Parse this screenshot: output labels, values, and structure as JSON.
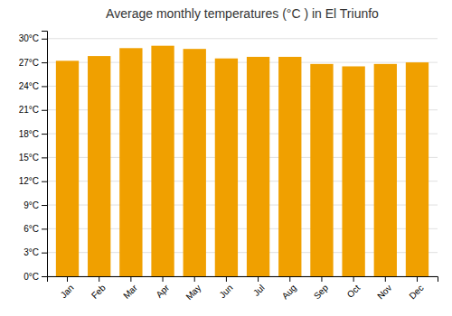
{
  "chart_data": {
    "type": "bar",
    "title": "Average monthly temperatures (°C ) in El Triunfo",
    "categories": [
      "Jan",
      "Feb",
      "Mar",
      "Apr",
      "May",
      "Jun",
      "Jul",
      "Aug",
      "Sep",
      "Oct",
      "Nov",
      "Dec"
    ],
    "values": [
      27.2,
      27.8,
      28.8,
      29.1,
      28.7,
      27.5,
      27.7,
      27.7,
      26.8,
      26.5,
      26.8,
      27.0
    ],
    "color": "#F0A000",
    "ylim": [
      0,
      31
    ],
    "yticks": [
      {
        "value": 0,
        "label": "0°C"
      },
      {
        "value": 3,
        "label": "3°C"
      },
      {
        "value": 6,
        "label": "6°C"
      },
      {
        "value": 9,
        "label": "9°C"
      },
      {
        "value": 12,
        "label": "12°C"
      },
      {
        "value": 15,
        "label": "15°C"
      },
      {
        "value": 18,
        "label": "18°C"
      },
      {
        "value": 21,
        "label": "21°C"
      },
      {
        "value": 24,
        "label": "24°C"
      },
      {
        "value": 27,
        "label": "27°C"
      },
      {
        "value": 30,
        "label": "30°C"
      }
    ],
    "grid": true
  }
}
